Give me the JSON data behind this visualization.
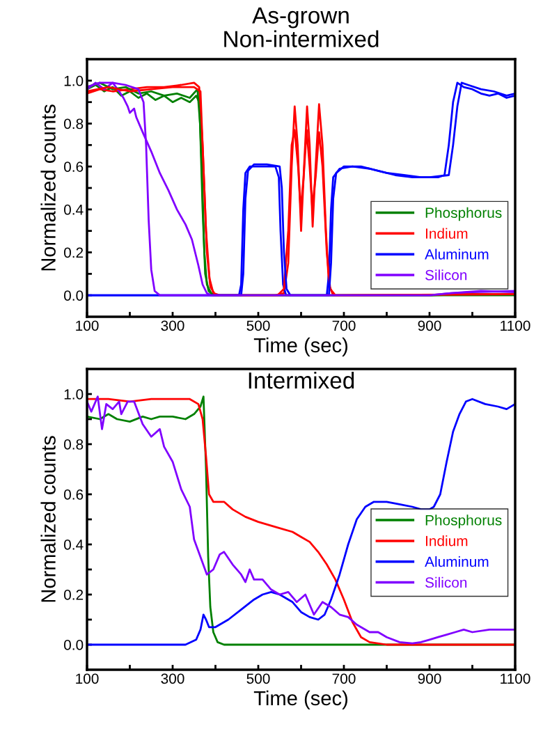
{
  "chart_data": [
    {
      "type": "line",
      "title": "As-grown",
      "subtitle": "Non-intermixed",
      "xlabel": "Time (sec)",
      "ylabel": "Normalized counts",
      "xlim": [
        100,
        1100
      ],
      "ylim": [
        -0.1,
        1.1
      ],
      "xticks": [
        100,
        {
          "value": 200,
          "label": null
        },
        300,
        {
          "value": 400,
          "label": null
        },
        500,
        {
          "value": 600,
          "label": null
        },
        700,
        {
          "value": 800,
          "label": null
        },
        900,
        {
          "value": 1000,
          "label": null
        },
        1100
      ],
      "yticks": [
        {
          "value": 0,
          "label": "0.0"
        },
        {
          "value": 0.1,
          "label": null
        },
        {
          "value": 0.2,
          "label": "0.2"
        },
        {
          "value": 0.3,
          "label": null
        },
        {
          "value": 0.4,
          "label": "0.4"
        },
        {
          "value": 0.5,
          "label": null
        },
        {
          "value": 0.6,
          "label": "0.6"
        },
        {
          "value": 0.7,
          "label": null
        },
        {
          "value": 0.8,
          "label": "0.8"
        },
        {
          "value": 0.9,
          "label": null
        },
        {
          "value": 1.0,
          "label": "1.0"
        }
      ],
      "grid": false,
      "legend": "bottom right",
      "marker": "none",
      "line_style": "solid",
      "series": [
        {
          "name": "Phosphorus",
          "color": "#008000",
          "x": [
            100,
            120,
            140,
            160,
            180,
            200,
            220,
            240,
            260,
            280,
            300,
            320,
            340,
            355,
            362,
            368,
            374,
            380,
            390,
            400,
            500,
            700,
            900,
            1000,
            1100
          ],
          "values": [
            0.96,
            0.98,
            0.95,
            0.97,
            0.93,
            0.95,
            0.92,
            0.94,
            0.91,
            0.93,
            0.9,
            0.92,
            0.9,
            0.93,
            0.9,
            0.6,
            0.2,
            0.05,
            0.01,
            0,
            0,
            0,
            0,
            0.005,
            0.005
          ]
        },
        {
          "name": "Indium",
          "color": "#ff0000",
          "x": [
            100,
            130,
            160,
            200,
            240,
            280,
            320,
            350,
            362,
            370,
            378,
            386,
            395,
            410,
            540,
            560,
            570,
            578,
            585,
            592,
            600,
            607,
            614,
            620,
            627,
            634,
            642,
            650,
            658,
            665,
            675,
            900,
            950,
            1100
          ],
          "values": [
            0.94,
            0.96,
            0.95,
            0.96,
            0.97,
            0.97,
            0.98,
            0.99,
            0.97,
            0.7,
            0.3,
            0.08,
            0.01,
            0,
            0,
            0.01,
            0.15,
            0.6,
            0.88,
            0.7,
            0.3,
            0.6,
            0.88,
            0.7,
            0.32,
            0.6,
            0.89,
            0.7,
            0.3,
            0.05,
            0,
            0,
            0.005,
            0.005
          ]
        },
        {
          "name": "Aluminum",
          "color": "#0000ff",
          "x": [
            100,
            455,
            460,
            465,
            470,
            480,
            500,
            520,
            540,
            548,
            552,
            558,
            565,
            660,
            665,
            670,
            675,
            690,
            720,
            760,
            800,
            840,
            880,
            920,
            935,
            945,
            955,
            965,
            980,
            1000,
            1020,
            1040,
            1060,
            1080,
            1100
          ],
          "values": [
            0,
            0,
            0.05,
            0.4,
            0.57,
            0.6,
            0.6,
            0.6,
            0.6,
            0.55,
            0.3,
            0.05,
            0,
            0,
            0.1,
            0.4,
            0.55,
            0.59,
            0.6,
            0.59,
            0.57,
            0.56,
            0.55,
            0.55,
            0.56,
            0.7,
            0.9,
            0.99,
            0.97,
            0.96,
            0.94,
            0.93,
            0.94,
            0.92,
            0.93
          ]
        },
        {
          "name": "Silicon",
          "color": "#8000ff",
          "x": [
            100,
            120,
            140,
            160,
            175,
            185,
            195,
            200,
            210,
            215,
            230,
            250,
            270,
            290,
            310,
            330,
            345,
            360,
            370,
            380,
            390,
            900,
            950,
            1000,
            1100
          ],
          "values": [
            0.96,
            0.99,
            0.96,
            0.99,
            0.95,
            0.92,
            0.88,
            0.85,
            0.87,
            0.83,
            0.76,
            0.67,
            0.57,
            0.49,
            0.4,
            0.33,
            0.26,
            0.14,
            0.05,
            0.01,
            0,
            0,
            0.01,
            0.015,
            0.02
          ]
        },
        {
          "color": "#008000",
          "x": [
            100,
            130,
            160,
            190,
            220,
            250,
            280,
            310,
            340,
            358,
            364,
            370,
            376,
            384,
            395,
            1100
          ],
          "values": [
            0.97,
            0.99,
            0.96,
            0.97,
            0.94,
            0.95,
            0.93,
            0.94,
            0.92,
            0.96,
            0.8,
            0.4,
            0.1,
            0.02,
            0,
            0
          ]
        },
        {
          "color": "#ff0000",
          "x": [
            100,
            150,
            200,
            250,
            300,
            350,
            365,
            372,
            380,
            388,
            400,
            545,
            560,
            570,
            578,
            585,
            593,
            599,
            606,
            613,
            620,
            626,
            634,
            642,
            650,
            660,
            668,
            680,
            1100
          ],
          "values": [
            0.95,
            0.97,
            0.95,
            0.96,
            0.97,
            0.97,
            0.95,
            0.6,
            0.2,
            0.04,
            0,
            0,
            0.03,
            0.3,
            0.7,
            0.77,
            0.6,
            0.4,
            0.55,
            0.77,
            0.6,
            0.41,
            0.55,
            0.76,
            0.6,
            0.2,
            0.03,
            0,
            0.005
          ]
        },
        {
          "color": "#0000ff",
          "x": [
            100,
            460,
            465,
            470,
            476,
            490,
            520,
            550,
            555,
            560,
            566,
            575,
            665,
            670,
            675,
            682,
            700,
            740,
            780,
            820,
            860,
            900,
            945,
            955,
            965,
            975,
            990,
            1020,
            1050,
            1080,
            1100
          ],
          "values": [
            0,
            0,
            0.1,
            0.45,
            0.58,
            0.61,
            0.61,
            0.6,
            0.5,
            0.2,
            0.03,
            0,
            0,
            0.15,
            0.45,
            0.57,
            0.6,
            0.6,
            0.58,
            0.56,
            0.55,
            0.55,
            0.56,
            0.7,
            0.88,
            0.99,
            0.98,
            0.96,
            0.95,
            0.93,
            0.94
          ]
        },
        {
          "color": "#8000ff",
          "x": [
            100,
            130,
            160,
            190,
            220,
            232,
            238,
            244,
            250,
            258,
            270,
            900,
            950,
            1020,
            1100
          ],
          "values": [
            0.97,
            0.99,
            0.99,
            0.98,
            0.96,
            0.9,
            0.7,
            0.35,
            0.12,
            0.02,
            0,
            0,
            0.01,
            0.02,
            0.015
          ]
        }
      ]
    },
    {
      "type": "line",
      "title": "Intermixed",
      "xlabel": "Time (sec)",
      "ylabel": "Normalized counts",
      "xlim": [
        100,
        1100
      ],
      "ylim": [
        -0.1,
        1.1
      ],
      "xticks": [
        100,
        {
          "value": 200,
          "label": null
        },
        300,
        {
          "value": 400,
          "label": null
        },
        500,
        {
          "value": 600,
          "label": null
        },
        700,
        {
          "value": 800,
          "label": null
        },
        900,
        {
          "value": 1000,
          "label": null
        },
        1100
      ],
      "yticks": [
        {
          "value": 0,
          "label": "0.0"
        },
        {
          "value": 0.1,
          "label": null
        },
        {
          "value": 0.2,
          "label": "0.2"
        },
        {
          "value": 0.3,
          "label": null
        },
        {
          "value": 0.4,
          "label": "0.4"
        },
        {
          "value": 0.5,
          "label": null
        },
        {
          "value": 0.6,
          "label": "0.6"
        },
        {
          "value": 0.7,
          "label": null
        },
        {
          "value": 0.8,
          "label": "0.8"
        },
        {
          "value": 0.9,
          "label": null
        },
        {
          "value": 1.0,
          "label": "1.0"
        }
      ],
      "grid": false,
      "legend": "right",
      "marker": "none",
      "line_style": "solid",
      "series": [
        {
          "name": "Phosphorus",
          "color": "#008000",
          "x": [
            100,
            130,
            150,
            170,
            200,
            230,
            250,
            270,
            300,
            330,
            350,
            365,
            372,
            378,
            383,
            388,
            395,
            405,
            420,
            1100
          ],
          "values": [
            0.91,
            0.9,
            0.92,
            0.9,
            0.89,
            0.91,
            0.9,
            0.91,
            0.91,
            0.9,
            0.92,
            0.95,
            0.99,
            0.7,
            0.35,
            0.15,
            0.05,
            0.01,
            0,
            0
          ]
        },
        {
          "name": "Indium",
          "color": "#ff0000",
          "x": [
            100,
            150,
            200,
            250,
            300,
            340,
            360,
            370,
            378,
            385,
            395,
            420,
            440,
            470,
            500,
            540,
            580,
            600,
            620,
            640,
            660,
            680,
            700,
            720,
            740,
            760,
            800,
            1100
          ],
          "values": [
            0.98,
            0.98,
            0.97,
            0.98,
            0.98,
            0.98,
            0.96,
            0.9,
            0.75,
            0.6,
            0.57,
            0.57,
            0.54,
            0.51,
            0.49,
            0.47,
            0.45,
            0.43,
            0.41,
            0.37,
            0.32,
            0.26,
            0.18,
            0.09,
            0.03,
            0.01,
            0,
            0
          ]
        },
        {
          "name": "Aluminum",
          "color": "#0000ff",
          "x": [
            100,
            330,
            355,
            365,
            372,
            378,
            385,
            400,
            430,
            460,
            490,
            510,
            530,
            550,
            580,
            600,
            620,
            640,
            655,
            670,
            690,
            710,
            730,
            750,
            770,
            800,
            830,
            860,
            880,
            900,
            910,
            925,
            940,
            955,
            970,
            985,
            1000,
            1030,
            1060,
            1080,
            1100
          ],
          "values": [
            0,
            0,
            0.02,
            0.06,
            0.12,
            0.1,
            0.07,
            0.07,
            0.1,
            0.14,
            0.18,
            0.2,
            0.21,
            0.2,
            0.17,
            0.13,
            0.11,
            0.1,
            0.12,
            0.18,
            0.28,
            0.4,
            0.5,
            0.55,
            0.57,
            0.57,
            0.56,
            0.55,
            0.54,
            0.54,
            0.55,
            0.6,
            0.73,
            0.85,
            0.92,
            0.97,
            0.98,
            0.96,
            0.95,
            0.94,
            0.96
          ]
        },
        {
          "name": "Silicon",
          "color": "#8000ff",
          "x": [
            100,
            110,
            125,
            135,
            145,
            160,
            175,
            180,
            195,
            210,
            230,
            250,
            270,
            280,
            300,
            320,
            340,
            350,
            365,
            380,
            395,
            410,
            420,
            440,
            460,
            470,
            480,
            490,
            510,
            530,
            550,
            570,
            590,
            610,
            630,
            650,
            670,
            690,
            710,
            730,
            760,
            780,
            800,
            830,
            860,
            880,
            900,
            920,
            940,
            960,
            980,
            1000,
            1040,
            1080,
            1100
          ],
          "values": [
            0.97,
            0.93,
            0.99,
            0.86,
            0.96,
            0.94,
            0.97,
            0.92,
            0.97,
            0.97,
            0.88,
            0.83,
            0.86,
            0.79,
            0.73,
            0.62,
            0.55,
            0.42,
            0.35,
            0.28,
            0.3,
            0.36,
            0.37,
            0.32,
            0.28,
            0.25,
            0.3,
            0.26,
            0.26,
            0.22,
            0.2,
            0.21,
            0.17,
            0.2,
            0.12,
            0.17,
            0.15,
            0.12,
            0.11,
            0.08,
            0.05,
            0.05,
            0.03,
            0.01,
            0.005,
            0.01,
            0.02,
            0.03,
            0.04,
            0.05,
            0.06,
            0.05,
            0.06,
            0.06,
            0.06
          ]
        }
      ]
    }
  ]
}
